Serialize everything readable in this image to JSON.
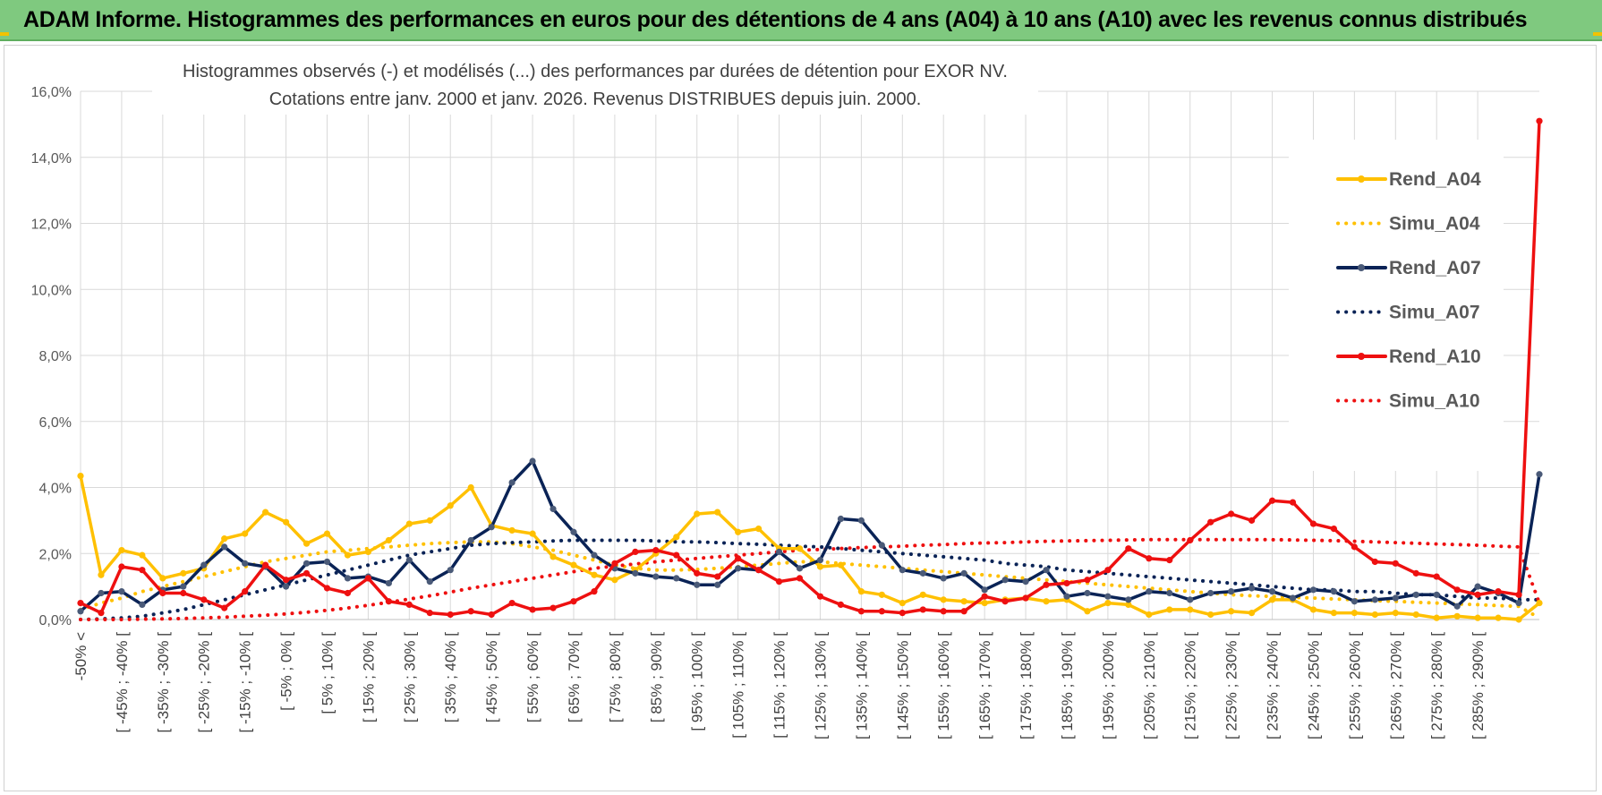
{
  "page": {
    "title": "ADAM Informe. Histogrammes des performances en euros pour des détentions de 4 ans (A04) à 10 ans (A10) avec les revenus connus distribués"
  },
  "colors": {
    "banner": "#7fc97f",
    "A04": "#ffc000",
    "A07": "#0a2356",
    "A07_marker": "#4a5a78",
    "A10": "#ee1010",
    "grid": "#d9d9d9"
  },
  "chart_data": {
    "type": "line",
    "title": "Histogrammes observés (-) et modélisés (...) des performances par durées de détention pour EXOR NV.",
    "subtitle": "Cotations entre janv. 2000 et janv. 2026. Revenus DISTRIBUES depuis juin. 2000.",
    "ylim": [
      0,
      16
    ],
    "yticks": [
      "0,0%",
      "2,0%",
      "4,0%",
      "6,0%",
      "8,0%",
      "10,0%",
      "12,0%",
      "14,0%",
      "16,0%"
    ],
    "xtick_labels": [
      "-50% <",
      "[ -45% ; -40% [",
      "[ -35% ; -30% [",
      "[ -25% ; -20% [",
      "[ -15% ; -10% [",
      "[ -5% ; 0% [",
      "[ 5% ; 10% [",
      "[ 15% ; 20% [",
      "[ 25% ; 30% [",
      "[ 35% ; 40% [",
      "[ 45% ; 50% [",
      "[ 55% ; 60% [",
      "[ 65% ; 70% [",
      "[ 75% ; 80% [",
      "[ 85% ; 90% [",
      "[ 95% ; 100% [",
      "[ 105% ; 110% [",
      "[ 115% ; 120% [",
      "[ 125% ; 130% [",
      "[ 135% ; 140% [",
      "[ 145% ; 150% [",
      "[ 155% ; 160% [",
      "[ 165% ; 170% [",
      "[ 175% ; 180% [",
      "[ 185% ; 190% [",
      "[ 195% ; 200% [",
      "[ 205% ; 210% [",
      "[ 215% ; 220% [",
      "[ 225% ; 230% [",
      "[ 235% ; 240% [",
      "[ 245% ; 250% [",
      "[ 255% ; 260% [",
      "[ 265% ; 270% [",
      "[ 275% ; 280% [",
      "[ 285% ; 290% ["
    ],
    "legend": [
      "Rend_A04",
      "Simu_A04",
      "Rend_A07",
      "Simu_A07",
      "Rend_A10",
      "Simu_A10"
    ],
    "legend_position": "top-right",
    "grid": true,
    "series": [
      {
        "name": "Rend_A04",
        "style": "solid",
        "color": "#ffc000",
        "markers": true,
        "values": [
          4.35,
          1.35,
          2.1,
          1.95,
          1.25,
          1.4,
          1.55,
          2.45,
          2.6,
          3.25,
          2.95,
          2.3,
          2.6,
          1.95,
          2.05,
          2.4,
          2.9,
          3.0,
          3.45,
          4.0,
          2.85,
          2.7,
          2.6,
          1.9,
          1.65,
          1.35,
          1.2,
          1.5,
          2.0,
          2.5,
          3.2,
          3.25,
          2.65,
          2.75,
          2.15,
          2.15,
          1.6,
          1.65,
          0.85,
          0.75,
          0.5,
          0.75,
          0.6,
          0.55,
          0.5,
          0.6,
          0.65,
          0.55,
          0.6,
          0.25,
          0.5,
          0.45,
          0.15,
          0.3,
          0.3,
          0.15,
          0.25,
          0.2,
          0.6,
          0.6,
          0.3,
          0.2,
          0.2,
          0.15,
          0.2,
          0.15,
          0.05,
          0.1,
          0.05,
          0.05,
          0.0,
          0.5
        ]
      },
      {
        "name": "Simu_A04",
        "style": "dotted",
        "color": "#ffc000",
        "markers": false,
        "values": [
          0.3,
          0.5,
          0.65,
          0.85,
          1.0,
          1.15,
          1.3,
          1.45,
          1.6,
          1.75,
          1.85,
          1.95,
          2.05,
          2.1,
          2.15,
          2.2,
          2.25,
          2.3,
          2.33,
          2.35,
          2.35,
          2.3,
          2.2,
          2.1,
          1.95,
          1.8,
          1.65,
          1.55,
          1.5,
          1.5,
          1.52,
          1.55,
          1.6,
          1.65,
          1.7,
          1.75,
          1.75,
          1.7,
          1.65,
          1.6,
          1.55,
          1.5,
          1.45,
          1.4,
          1.35,
          1.3,
          1.25,
          1.2,
          1.15,
          1.1,
          1.05,
          1.0,
          0.95,
          0.9,
          0.85,
          0.8,
          0.75,
          0.72,
          0.7,
          0.67,
          0.65,
          0.62,
          0.6,
          0.57,
          0.55,
          0.52,
          0.5,
          0.47,
          0.45,
          0.42,
          0.4,
          0.05
        ]
      },
      {
        "name": "Rend_A07",
        "style": "solid",
        "color": "#0a2356",
        "markers": true,
        "values": [
          0.25,
          0.8,
          0.85,
          0.45,
          0.9,
          1.0,
          1.65,
          2.2,
          1.7,
          1.6,
          1.0,
          1.7,
          1.75,
          1.25,
          1.3,
          1.1,
          1.8,
          1.15,
          1.5,
          2.4,
          2.8,
          4.15,
          4.8,
          3.35,
          2.65,
          1.95,
          1.55,
          1.4,
          1.3,
          1.25,
          1.05,
          1.05,
          1.55,
          1.5,
          2.05,
          1.55,
          1.8,
          3.05,
          3.0,
          2.25,
          1.5,
          1.4,
          1.25,
          1.4,
          0.9,
          1.2,
          1.15,
          1.5,
          0.7,
          0.8,
          0.7,
          0.6,
          0.85,
          0.8,
          0.6,
          0.8,
          0.85,
          0.95,
          0.85,
          0.65,
          0.9,
          0.85,
          0.55,
          0.6,
          0.65,
          0.75,
          0.75,
          0.4,
          1.0,
          0.8,
          0.5,
          4.4
        ]
      },
      {
        "name": "Simu_A07",
        "style": "dotted",
        "color": "#0a2356",
        "markers": false,
        "values": [
          0.0,
          0.02,
          0.05,
          0.1,
          0.2,
          0.3,
          0.45,
          0.6,
          0.75,
          0.9,
          1.05,
          1.2,
          1.35,
          1.5,
          1.65,
          1.8,
          1.95,
          2.05,
          2.15,
          2.25,
          2.3,
          2.33,
          2.35,
          2.38,
          2.4,
          2.4,
          2.4,
          2.4,
          2.38,
          2.35,
          2.35,
          2.33,
          2.3,
          2.28,
          2.25,
          2.22,
          2.2,
          2.15,
          2.1,
          2.05,
          2.0,
          1.95,
          1.9,
          1.85,
          1.8,
          1.7,
          1.65,
          1.6,
          1.5,
          1.45,
          1.4,
          1.35,
          1.3,
          1.25,
          1.2,
          1.15,
          1.1,
          1.05,
          1.0,
          0.95,
          0.9,
          0.9,
          0.85,
          0.85,
          0.8,
          0.75,
          0.75,
          0.7,
          0.65,
          0.65,
          0.6,
          0.6
        ]
      },
      {
        "name": "Rend_A10",
        "style": "solid",
        "color": "#ee1010",
        "markers": true,
        "values": [
          0.5,
          0.2,
          1.6,
          1.5,
          0.8,
          0.8,
          0.6,
          0.35,
          0.85,
          1.65,
          1.2,
          1.4,
          0.95,
          0.8,
          1.25,
          0.55,
          0.45,
          0.2,
          0.15,
          0.25,
          0.15,
          0.5,
          0.3,
          0.35,
          0.55,
          0.85,
          1.7,
          2.05,
          2.1,
          1.95,
          1.4,
          1.3,
          1.85,
          1.5,
          1.15,
          1.25,
          0.7,
          0.45,
          0.25,
          0.25,
          0.2,
          0.3,
          0.25,
          0.25,
          0.7,
          0.55,
          0.65,
          1.05,
          1.1,
          1.2,
          1.5,
          2.15,
          1.85,
          1.8,
          2.4,
          2.95,
          3.2,
          3.0,
          3.6,
          3.55,
          2.9,
          2.75,
          2.2,
          1.75,
          1.7,
          1.4,
          1.3,
          0.9,
          0.75,
          0.85,
          0.75,
          15.1
        ]
      },
      {
        "name": "Simu_A10",
        "style": "dotted",
        "color": "#ee1010",
        "markers": false,
        "values": [
          0.0,
          0.0,
          0.0,
          0.01,
          0.02,
          0.03,
          0.05,
          0.07,
          0.1,
          0.13,
          0.17,
          0.22,
          0.28,
          0.35,
          0.43,
          0.52,
          0.62,
          0.72,
          0.83,
          0.95,
          1.05,
          1.15,
          1.25,
          1.35,
          1.45,
          1.55,
          1.62,
          1.68,
          1.75,
          1.8,
          1.85,
          1.9,
          1.95,
          2.0,
          2.05,
          2.1,
          2.12,
          2.15,
          2.18,
          2.2,
          2.22,
          2.25,
          2.27,
          2.3,
          2.32,
          2.33,
          2.35,
          2.37,
          2.38,
          2.39,
          2.4,
          2.41,
          2.42,
          2.42,
          2.42,
          2.42,
          2.42,
          2.42,
          2.42,
          2.41,
          2.4,
          2.39,
          2.37,
          2.35,
          2.33,
          2.31,
          2.29,
          2.27,
          2.25,
          2.22,
          2.2,
          0.5
        ]
      }
    ]
  }
}
